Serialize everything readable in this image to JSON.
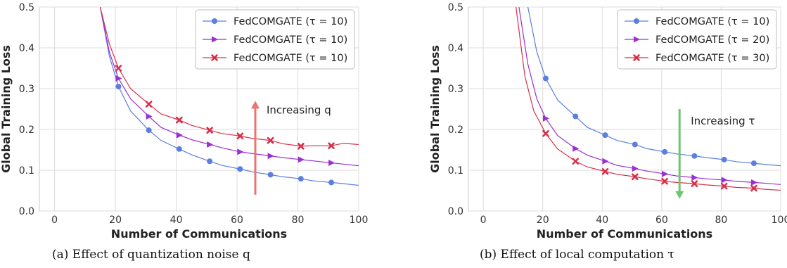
{
  "captions": {
    "a": "(a)  Effect of quantization noise q",
    "b": "(b)  Effect of local computation τ"
  },
  "chart_data": [
    {
      "type": "line",
      "xlabel": "Number of Communications",
      "ylabel": "Global Training Loss",
      "xlim": [
        -5,
        100
      ],
      "ylim": [
        0,
        0.5
      ],
      "xticks": [
        0,
        20,
        40,
        60,
        80,
        100
      ],
      "yticks": [
        0.0,
        0.1,
        0.2,
        0.3,
        0.4,
        0.5
      ],
      "grid": true,
      "legend_position": "top-right",
      "annotation": {
        "text": "Increasing q",
        "direction": "up",
        "color": "#e8756f",
        "x": 66,
        "y_start": 0.04,
        "y_end": 0.27
      },
      "series": [
        {
          "name": "FedCOMGATE (τ = 10)",
          "color": "#5b7fe0",
          "marker": "circle",
          "x": [
            15,
            18,
            21,
            25,
            31,
            35,
            41,
            45,
            51,
            55,
            61,
            65,
            71,
            75,
            81,
            85,
            91,
            95,
            100
          ],
          "y": [
            0.5,
            0.38,
            0.305,
            0.245,
            0.198,
            0.173,
            0.152,
            0.138,
            0.122,
            0.112,
            0.103,
            0.096,
            0.089,
            0.084,
            0.079,
            0.074,
            0.07,
            0.067,
            0.063
          ],
          "markers_x": [
            21,
            31,
            41,
            51,
            61,
            71,
            81,
            91
          ],
          "markers_y": [
            0.305,
            0.198,
            0.152,
            0.122,
            0.103,
            0.089,
            0.079,
            0.07
          ]
        },
        {
          "name": "FedCOMGATE (τ = 10)",
          "color": "#9b2fd6",
          "marker": "triangle-right",
          "x": [
            15,
            18,
            21,
            25,
            31,
            35,
            41,
            45,
            51,
            55,
            61,
            65,
            71,
            75,
            81,
            85,
            91,
            95,
            100
          ],
          "y": [
            0.5,
            0.39,
            0.325,
            0.275,
            0.232,
            0.205,
            0.186,
            0.175,
            0.163,
            0.155,
            0.145,
            0.141,
            0.135,
            0.131,
            0.126,
            0.123,
            0.118,
            0.115,
            0.111
          ],
          "markers_x": [
            21,
            31,
            41,
            51,
            61,
            71,
            81,
            91
          ],
          "markers_y": [
            0.325,
            0.232,
            0.186,
            0.163,
            0.145,
            0.135,
            0.126,
            0.118
          ]
        },
        {
          "name": "FedCOMGATE (τ = 10)",
          "color": "#d9304a",
          "marker": "x",
          "x": [
            15,
            18,
            21,
            25,
            31,
            35,
            41,
            45,
            51,
            55,
            61,
            65,
            71,
            75,
            81,
            85,
            91,
            95,
            100
          ],
          "y": [
            0.5,
            0.41,
            0.35,
            0.3,
            0.262,
            0.238,
            0.223,
            0.21,
            0.198,
            0.19,
            0.184,
            0.178,
            0.173,
            0.165,
            0.159,
            0.16,
            0.16,
            0.166,
            0.163
          ],
          "markers_x": [
            21,
            31,
            41,
            51,
            61,
            71,
            81,
            91
          ],
          "markers_y": [
            0.35,
            0.262,
            0.223,
            0.198,
            0.184,
            0.173,
            0.159,
            0.16
          ]
        }
      ]
    },
    {
      "type": "line",
      "xlabel": "Number of Communications",
      "ylabel": "Global Training Loss",
      "xlim": [
        -5,
        100
      ],
      "ylim": [
        0,
        0.5
      ],
      "xticks": [
        0,
        20,
        40,
        60,
        80,
        100
      ],
      "yticks": [
        0.0,
        0.1,
        0.2,
        0.3,
        0.4,
        0.5
      ],
      "grid": true,
      "legend_position": "top-right",
      "annotation": {
        "text": "Increasing τ",
        "direction": "down",
        "color": "#6cc66e",
        "x": 66,
        "y_start": 0.25,
        "y_end": 0.03
      },
      "series": [
        {
          "name": "FedCOMGATE (τ = 10)",
          "color": "#5b7fe0",
          "marker": "circle",
          "x": [
            15,
            18,
            21,
            25,
            31,
            35,
            41,
            45,
            51,
            55,
            61,
            65,
            71,
            75,
            81,
            85,
            91,
            95,
            100
          ],
          "y": [
            0.5,
            0.39,
            0.325,
            0.272,
            0.232,
            0.205,
            0.186,
            0.173,
            0.163,
            0.153,
            0.145,
            0.14,
            0.135,
            0.131,
            0.126,
            0.121,
            0.117,
            0.114,
            0.111
          ],
          "markers_x": [
            21,
            31,
            41,
            51,
            61,
            71,
            81,
            91
          ],
          "markers_y": [
            0.325,
            0.232,
            0.186,
            0.163,
            0.145,
            0.135,
            0.126,
            0.117
          ]
        },
        {
          "name": "FedCOMGATE (τ = 20)",
          "color": "#9b2fd6",
          "marker": "triangle-right",
          "x": [
            12,
            15,
            18,
            21,
            25,
            31,
            35,
            41,
            45,
            51,
            55,
            61,
            65,
            71,
            75,
            81,
            85,
            91,
            95,
            100
          ],
          "y": [
            0.5,
            0.36,
            0.275,
            0.227,
            0.185,
            0.153,
            0.137,
            0.122,
            0.112,
            0.104,
            0.098,
            0.091,
            0.086,
            0.082,
            0.079,
            0.076,
            0.073,
            0.07,
            0.068,
            0.065
          ],
          "markers_x": [
            21,
            31,
            41,
            51,
            61,
            71,
            81,
            91
          ],
          "markers_y": [
            0.227,
            0.153,
            0.122,
            0.104,
            0.091,
            0.082,
            0.076,
            0.07
          ]
        },
        {
          "name": "FedCOMGATE (τ = 30)",
          "color": "#d9304a",
          "marker": "x",
          "x": [
            11,
            14,
            17,
            21,
            25,
            31,
            35,
            41,
            45,
            51,
            55,
            61,
            65,
            71,
            75,
            81,
            85,
            91,
            95,
            100
          ],
          "y": [
            0.5,
            0.33,
            0.245,
            0.19,
            0.152,
            0.122,
            0.108,
            0.097,
            0.09,
            0.084,
            0.079,
            0.073,
            0.07,
            0.067,
            0.064,
            0.061,
            0.058,
            0.056,
            0.053,
            0.051
          ],
          "markers_x": [
            21,
            31,
            41,
            51,
            61,
            71,
            81,
            91
          ],
          "markers_y": [
            0.19,
            0.122,
            0.097,
            0.084,
            0.073,
            0.067,
            0.061,
            0.056
          ]
        }
      ]
    }
  ]
}
